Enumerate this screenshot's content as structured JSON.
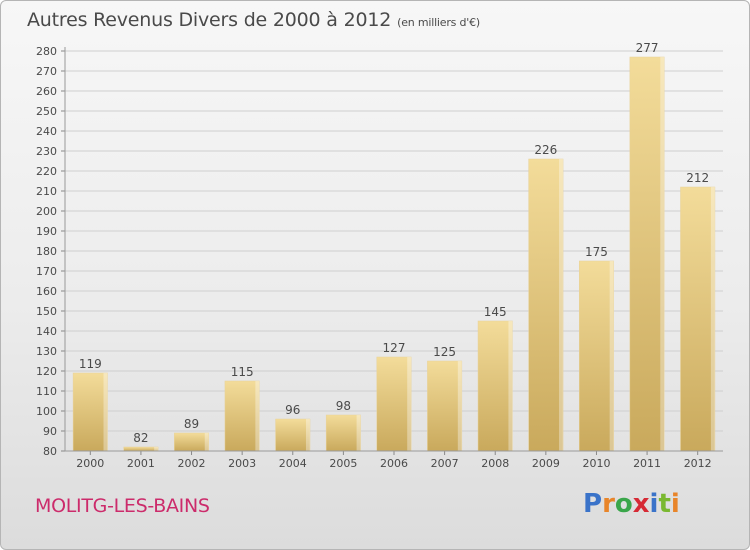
{
  "title": "Autres Revenus Divers de 2000 à 2012",
  "subtitle": "(en milliers d'€)",
  "city": "MOLITG-LES-BAINS",
  "logo": {
    "letters": [
      "P",
      "r",
      "o",
      "x",
      "i",
      "t",
      "i"
    ],
    "colors": [
      "#3a73c9",
      "#e8852a",
      "#3aa64a",
      "#d62a35",
      "#3a73c9",
      "#7ab830",
      "#e8852a"
    ]
  },
  "colors": {
    "bar_light": "#f3dc9a",
    "bar_dark": "#c9a95c",
    "grid": "#cfcfcf",
    "text": "#4a4a4a",
    "city": "#cc2b6b"
  },
  "chart_data": {
    "type": "bar",
    "categories": [
      "2000",
      "2001",
      "2002",
      "2003",
      "2004",
      "2005",
      "2006",
      "2007",
      "2008",
      "2009",
      "2010",
      "2011",
      "2012"
    ],
    "values": [
      119,
      82,
      89,
      115,
      96,
      98,
      127,
      125,
      145,
      226,
      175,
      277,
      212
    ],
    "data_labels": [
      "119",
      "82",
      "89",
      "115",
      "96",
      "98",
      "127",
      "125",
      "145",
      "226",
      "175",
      "277",
      "212"
    ],
    "ylim": [
      80,
      280
    ],
    "yticks": [
      "80",
      "90",
      "100",
      "110",
      "120",
      "130",
      "140",
      "150",
      "160",
      "170",
      "180",
      "190",
      "200",
      "210",
      "220",
      "230",
      "240",
      "250",
      "260",
      "270",
      "280"
    ],
    "grid": true
  }
}
